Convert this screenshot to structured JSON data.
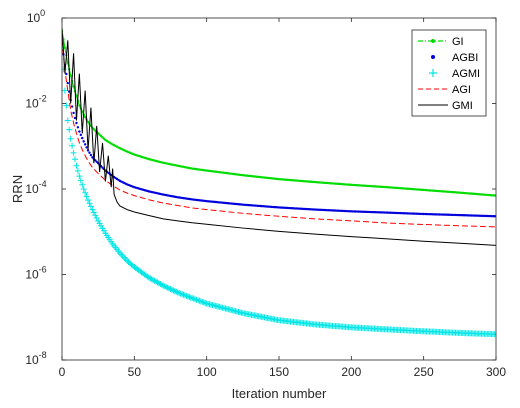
{
  "chart_data": {
    "type": "line",
    "title": "",
    "xlabel": "Iteration number",
    "ylabel": "RRN",
    "xlim": [
      0,
      300
    ],
    "ylim": [
      1e-08,
      1
    ],
    "yscale": "log",
    "grid": false,
    "legend_position": "top-right",
    "x_ticks": [
      0,
      50,
      100,
      150,
      200,
      250,
      300
    ],
    "x_tick_labels": [
      "0",
      "50",
      "100",
      "150",
      "200",
      "250",
      "300"
    ],
    "y_ticks": [
      1e-08,
      1e-06,
      0.0001,
      0.01,
      1
    ],
    "y_tick_labels": [
      {
        "base": "10",
        "exp": "-8"
      },
      {
        "base": "10",
        "exp": "-6"
      },
      {
        "base": "10",
        "exp": "-4"
      },
      {
        "base": "10",
        "exp": "-2"
      },
      {
        "base": "10",
        "exp": "0"
      }
    ],
    "series": [
      {
        "name": "GI",
        "color": "#00dd00",
        "style": "dash-dot with dots",
        "x": [
          0,
          2,
          4,
          6,
          8,
          10,
          12,
          15,
          18,
          21,
          25,
          30,
          35,
          40,
          45,
          50,
          60,
          70,
          80,
          90,
          100,
          125,
          150,
          175,
          200,
          225,
          250,
          275,
          300
        ],
        "y": [
          0.5,
          0.2,
          0.09,
          0.045,
          0.025,
          0.015,
          0.009,
          0.0055,
          0.0037,
          0.0027,
          0.002,
          0.0014,
          0.0011,
          0.0009,
          0.00075,
          0.00064,
          0.0005,
          0.00041,
          0.00035,
          0.0003,
          0.00027,
          0.00021,
          0.00017,
          0.000145,
          0.000125,
          0.00011,
          9.5e-05,
          8.2e-05,
          7e-05
        ]
      },
      {
        "name": "AGBI",
        "color": "#0000dd",
        "style": "dotted markers",
        "x": [
          0,
          2,
          4,
          6,
          8,
          10,
          12,
          15,
          18,
          21,
          25,
          30,
          35,
          40,
          45,
          50,
          60,
          70,
          80,
          90,
          100,
          125,
          150,
          175,
          200,
          225,
          250,
          275,
          300
        ],
        "y": [
          0.25,
          0.08,
          0.03,
          0.012,
          0.006,
          0.0035,
          0.0022,
          0.0013,
          0.0008,
          0.00055,
          0.0004,
          0.00027,
          0.0002,
          0.000155,
          0.000128,
          0.00011,
          8.8e-05,
          7.4e-05,
          6.4e-05,
          5.7e-05,
          5.2e-05,
          4.3e-05,
          3.7e-05,
          3.3e-05,
          3e-05,
          2.8e-05,
          2.6e-05,
          2.45e-05,
          2.3e-05
        ]
      },
      {
        "name": "AGMI",
        "color": "#00e5e5",
        "style": "plus markers",
        "x": [
          0,
          2,
          4,
          6,
          8,
          10,
          12,
          15,
          18,
          21,
          25,
          30,
          35,
          40,
          45,
          50,
          60,
          70,
          80,
          90,
          100,
          125,
          150,
          175,
          200,
          225,
          250,
          275,
          300
        ],
        "y": [
          0.2,
          0.02,
          0.004,
          0.0015,
          0.0007,
          0.00035,
          0.0002,
          0.0001,
          5.5e-05,
          3.3e-05,
          1.8e-05,
          9.2e-06,
          5.2e-06,
          3.2e-06,
          2.1e-06,
          1.5e-06,
          8.5e-07,
          5.5e-07,
          3.8e-07,
          2.8e-07,
          2.1e-07,
          1.25e-07,
          8.5e-08,
          6.8e-08,
          5.8e-08,
          5.2e-08,
          4.7e-08,
          4.3e-08,
          4e-08
        ]
      },
      {
        "name": "AGI",
        "color": "#ff0000",
        "style": "dashed",
        "x": [
          0,
          2,
          4,
          6,
          8,
          10,
          12,
          15,
          18,
          21,
          25,
          30,
          35,
          40,
          45,
          50,
          60,
          70,
          80,
          90,
          100,
          125,
          150,
          175,
          200,
          225,
          250,
          275,
          300
        ],
        "y": [
          0.3,
          0.06,
          0.02,
          0.007,
          0.0035,
          0.002,
          0.0012,
          0.0007,
          0.00045,
          0.00032,
          0.00023,
          0.00016,
          0.00012,
          9.5e-05,
          8e-05,
          7e-05,
          5.6e-05,
          4.7e-05,
          4.1e-05,
          3.6e-05,
          3.3e-05,
          2.7e-05,
          2.3e-05,
          2e-05,
          1.8e-05,
          1.6e-05,
          1.48e-05,
          1.38e-05,
          1.3e-05
        ]
      },
      {
        "name": "GMI",
        "color": "#000000",
        "style": "solid",
        "x": [
          0,
          2,
          4,
          6,
          8,
          10,
          12,
          14,
          16,
          18,
          20,
          22,
          24,
          26,
          28,
          30,
          32,
          34,
          35,
          36,
          38,
          40,
          45,
          50,
          60,
          70,
          80,
          90,
          100,
          125,
          150,
          175,
          200,
          225,
          250,
          275,
          300
        ],
        "y": [
          0.6,
          0.05,
          0.3,
          0.01,
          0.15,
          0.004,
          0.05,
          0.002,
          0.02,
          0.0008,
          0.008,
          0.0004,
          0.003,
          0.00025,
          0.0012,
          0.00015,
          0.0006,
          0.00011,
          0.0003,
          7.5e-05,
          5e-05,
          4e-05,
          3.3e-05,
          2.9e-05,
          2.4e-05,
          2e-05,
          1.8e-05,
          1.62e-05,
          1.5e-05,
          1.22e-05,
          1.02e-05,
          8.8e-06,
          7.7e-06,
          6.8e-06,
          6e-06,
          5.4e-06,
          4.8e-06
        ]
      }
    ]
  }
}
